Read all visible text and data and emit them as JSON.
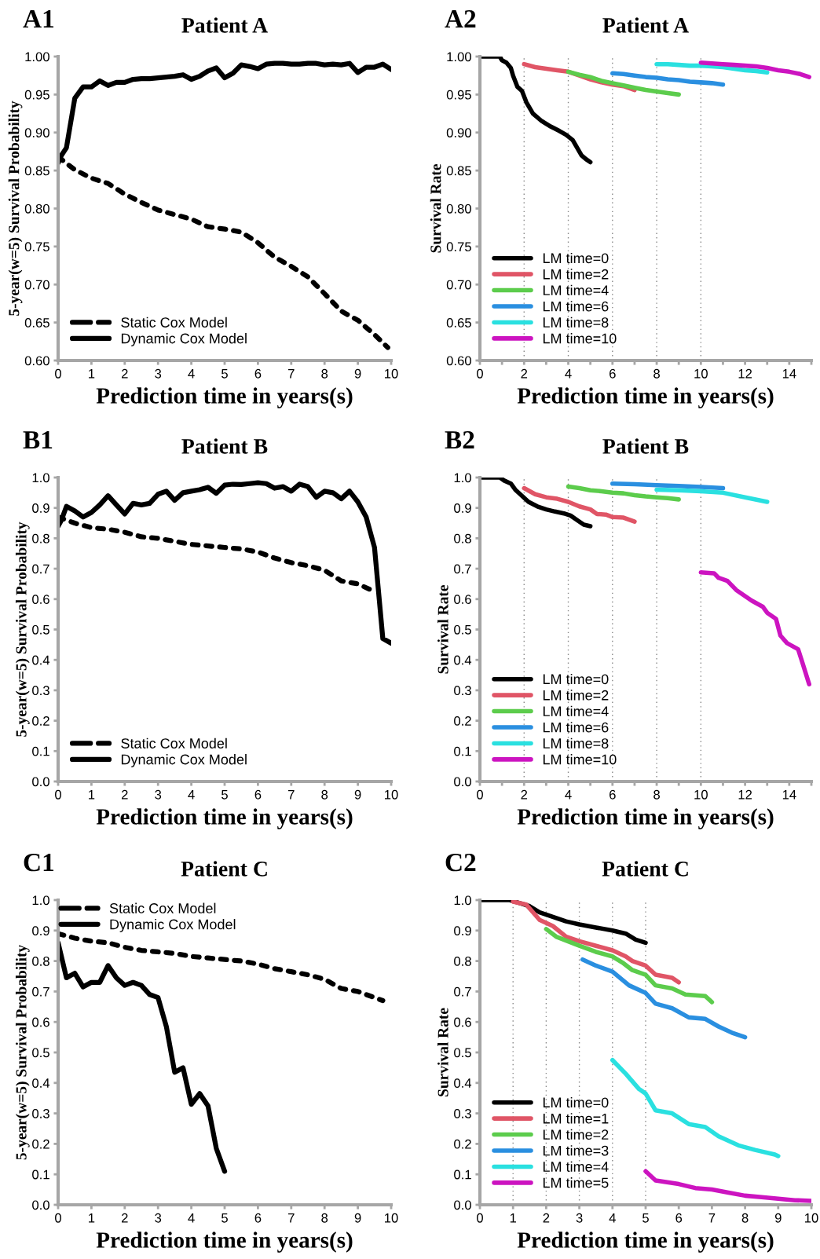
{
  "chart_data": [
    {
      "type": "line",
      "title": "Patient A",
      "annotations": [
        "A1"
      ],
      "xlabel": "Prediction time in years(s)",
      "ylabel": "5-year(w=5) Survival Probability",
      "legend": "bottom left",
      "xlim": [
        0,
        10
      ],
      "xticks": [
        0,
        1,
        2,
        3,
        4,
        5,
        6,
        7,
        8,
        9,
        10
      ],
      "ylim": [
        0.6,
        1.0
      ],
      "yticks": [
        {
          "value": 0.6,
          "label": "0.60"
        },
        {
          "value": 0.65,
          "label": "0.65"
        },
        {
          "value": 0.7,
          "label": "0.70"
        },
        {
          "value": 0.75,
          "label": "0.75"
        },
        {
          "value": 0.8,
          "label": "0.80"
        },
        {
          "value": 0.85,
          "label": "0.85"
        },
        {
          "value": 0.9,
          "label": "0.90"
        },
        {
          "value": 0.95,
          "label": "0.95"
        },
        {
          "value": 1.0,
          "label": "1.00"
        }
      ],
      "series": [
        {
          "name": "Static Cox Model",
          "color": "#000000",
          "line_style": "dashed",
          "x": [
            0,
            0.5,
            1,
            1.5,
            2,
            2.5,
            3,
            3.5,
            4,
            4.5,
            5,
            5.5,
            6,
            6.5,
            7,
            7.5,
            8,
            8.5,
            9,
            9.5,
            9.9
          ],
          "values": [
            0.868,
            0.851,
            0.84,
            0.833,
            0.819,
            0.808,
            0.798,
            0.792,
            0.786,
            0.776,
            0.773,
            0.769,
            0.755,
            0.736,
            0.724,
            0.71,
            0.688,
            0.665,
            0.653,
            0.634,
            0.617
          ]
        },
        {
          "name": "Dynamic Cox Model",
          "color": "#000000",
          "line_style": "solid",
          "x": [
            0,
            0.1,
            0.25,
            0.5,
            0.75,
            1,
            1.25,
            1.5,
            1.75,
            2,
            2.25,
            2.5,
            2.75,
            3,
            3.25,
            3.5,
            3.75,
            4,
            4.25,
            4.5,
            4.75,
            5,
            5.25,
            5.5,
            5.75,
            6,
            6.25,
            6.5,
            6.75,
            7,
            7.25,
            7.5,
            7.75,
            8,
            8.25,
            8.5,
            8.75,
            9,
            9.25,
            9.5,
            9.75,
            10
          ],
          "values": [
            0.86,
            0.87,
            0.88,
            0.945,
            0.96,
            0.96,
            0.968,
            0.962,
            0.966,
            0.966,
            0.97,
            0.971,
            0.971,
            0.972,
            0.973,
            0.974,
            0.976,
            0.97,
            0.974,
            0.981,
            0.985,
            0.972,
            0.978,
            0.989,
            0.987,
            0.984,
            0.99,
            0.991,
            0.991,
            0.99,
            0.99,
            0.991,
            0.991,
            0.989,
            0.99,
            0.989,
            0.991,
            0.979,
            0.986,
            0.986,
            0.99,
            0.983
          ]
        }
      ]
    },
    {
      "type": "line",
      "title": "Patient A",
      "annotations": [
        "A2"
      ],
      "xlabel": "Prediction time in years(s)",
      "ylabel": "Survival Rate",
      "legend": "bottom left",
      "xlim": [
        0,
        15
      ],
      "xticks": [
        0,
        {
          "value": 1,
          "label": null
        },
        2,
        {
          "value": 3,
          "label": null
        },
        4,
        {
          "value": 5,
          "label": null
        },
        6,
        {
          "value": 7,
          "label": null
        },
        8,
        {
          "value": 9,
          "label": null
        },
        10,
        {
          "value": 11,
          "label": null
        },
        12,
        {
          "value": 13,
          "label": null
        },
        14,
        {
          "value": 15,
          "label": null
        }
      ],
      "ylim": [
        0.6,
        1.0
      ],
      "yticks": [
        {
          "value": 0.6,
          "label": "0.60"
        },
        {
          "value": 0.65,
          "label": "0.65"
        },
        {
          "value": 0.7,
          "label": "0.70"
        },
        {
          "value": 0.75,
          "label": "0.75"
        },
        {
          "value": 0.8,
          "label": "0.80"
        },
        {
          "value": 0.85,
          "label": "0.85"
        },
        {
          "value": 0.9,
          "label": "0.90"
        },
        {
          "value": 0.95,
          "label": "0.95"
        },
        {
          "value": 1.0,
          "label": "1.00"
        }
      ],
      "ref_lines": [
        {
          "axis": "x",
          "value": 2,
          "color": "#888888",
          "line_style": "dotted"
        },
        {
          "axis": "x",
          "value": 4,
          "color": "#888888",
          "line_style": "dotted"
        },
        {
          "axis": "x",
          "value": 6,
          "color": "#888888",
          "line_style": "dotted"
        },
        {
          "axis": "x",
          "value": 8,
          "color": "#888888",
          "line_style": "dotted"
        },
        {
          "axis": "x",
          "value": 10,
          "color": "#888888",
          "line_style": "dotted"
        }
      ],
      "series": [
        {
          "name": "LM time=0",
          "color": "#000000",
          "x": [
            0,
            0.9,
            1.0,
            1.2,
            1.4,
            1.5,
            1.7,
            1.9,
            2.1,
            2.4,
            2.8,
            3.2,
            3.6,
            3.9,
            4.2,
            4.4,
            4.6,
            4.8,
            5.0
          ],
          "values": [
            1.0,
            1.0,
            0.995,
            0.992,
            0.985,
            0.975,
            0.96,
            0.955,
            0.94,
            0.925,
            0.915,
            0.908,
            0.902,
            0.897,
            0.89,
            0.88,
            0.87,
            0.865,
            0.861
          ]
        },
        {
          "name": "LM time=2",
          "color": "#e05566",
          "x": [
            2,
            2.5,
            3,
            3.5,
            4,
            4.5,
            5,
            5.5,
            6,
            6.5,
            7
          ],
          "values": [
            0.99,
            0.986,
            0.984,
            0.982,
            0.98,
            0.975,
            0.97,
            0.966,
            0.963,
            0.961,
            0.956
          ]
        },
        {
          "name": "LM time=4",
          "color": "#5ccc4c",
          "x": [
            4,
            4.5,
            5,
            5.5,
            6,
            6.5,
            7,
            7.5,
            8,
            8.5,
            9
          ],
          "values": [
            0.98,
            0.976,
            0.973,
            0.968,
            0.965,
            0.962,
            0.959,
            0.956,
            0.954,
            0.952,
            0.95
          ]
        },
        {
          "name": "LM time=6",
          "color": "#2a8fe0",
          "x": [
            6,
            6.5,
            7,
            7.5,
            8,
            8.5,
            9,
            9.5,
            10,
            10.5,
            11
          ],
          "values": [
            0.978,
            0.977,
            0.975,
            0.973,
            0.972,
            0.97,
            0.969,
            0.967,
            0.966,
            0.965,
            0.963
          ]
        },
        {
          "name": "LM time=8",
          "color": "#2ae0e0",
          "x": [
            8,
            8.5,
            9,
            9.5,
            10,
            10.5,
            11,
            11.5,
            12,
            12.5,
            13
          ],
          "values": [
            0.99,
            0.99,
            0.989,
            0.988,
            0.988,
            0.987,
            0.986,
            0.984,
            0.982,
            0.981,
            0.979
          ]
        },
        {
          "name": "LM time=10",
          "color": "#cc14c0",
          "x": [
            10,
            10.5,
            11,
            11.5,
            12,
            12.5,
            13,
            13.5,
            14,
            14.5,
            14.9
          ],
          "values": [
            0.992,
            0.991,
            0.99,
            0.989,
            0.988,
            0.987,
            0.985,
            0.982,
            0.98,
            0.977,
            0.973
          ]
        }
      ]
    },
    {
      "type": "line",
      "title": "Patient B",
      "annotations": [
        "B1"
      ],
      "xlabel": "Prediction time in years(s)",
      "ylabel": "5-year(w=5) Survival Probability",
      "legend": "bottom left",
      "xlim": [
        0,
        10
      ],
      "xticks": [
        0,
        1,
        2,
        3,
        4,
        5,
        6,
        7,
        8,
        9,
        10
      ],
      "ylim": [
        0.0,
        1.0
      ],
      "yticks": [
        {
          "value": 0,
          "label": "0.0"
        },
        0.1,
        0.2,
        0.3,
        0.4,
        0.5,
        0.6,
        0.7,
        0.8,
        0.9,
        {
          "value": 1,
          "label": "1.0"
        }
      ],
      "series": [
        {
          "name": "Static Cox Model",
          "color": "#000000",
          "line_style": "dashed",
          "x": [
            0,
            0.5,
            1,
            1.5,
            2,
            2.5,
            3,
            3.5,
            4,
            4.5,
            5,
            5.5,
            6,
            6.5,
            7,
            7.5,
            8,
            8.5,
            9,
            9.5
          ],
          "values": [
            0.87,
            0.85,
            0.835,
            0.83,
            0.82,
            0.805,
            0.8,
            0.79,
            0.78,
            0.775,
            0.77,
            0.765,
            0.755,
            0.735,
            0.72,
            0.71,
            0.695,
            0.66,
            0.65,
            0.625
          ]
        },
        {
          "name": "Dynamic Cox Model",
          "color": "#000000",
          "line_style": "solid",
          "x": [
            0,
            0.1,
            0.25,
            0.5,
            0.75,
            1,
            1.25,
            1.5,
            1.75,
            2,
            2.25,
            2.5,
            2.75,
            3,
            3.25,
            3.5,
            3.75,
            4,
            4.25,
            4.5,
            4.75,
            5,
            5.25,
            5.5,
            5.75,
            6,
            6.25,
            6.5,
            6.75,
            7,
            7.25,
            7.5,
            7.75,
            8,
            8.25,
            8.5,
            8.75,
            9,
            9.25,
            9.5,
            9.75,
            10
          ],
          "values": [
            0.84,
            0.86,
            0.905,
            0.89,
            0.87,
            0.885,
            0.91,
            0.94,
            0.91,
            0.88,
            0.915,
            0.91,
            0.915,
            0.945,
            0.955,
            0.925,
            0.95,
            0.955,
            0.96,
            0.968,
            0.948,
            0.975,
            0.978,
            0.977,
            0.98,
            0.983,
            0.98,
            0.965,
            0.97,
            0.955,
            0.978,
            0.97,
            0.935,
            0.955,
            0.95,
            0.93,
            0.955,
            0.92,
            0.87,
            0.77,
            0.47,
            0.455
          ]
        }
      ]
    },
    {
      "type": "line",
      "title": "Patient B",
      "annotations": [
        "B2"
      ],
      "xlabel": "Prediction time in years(s)",
      "ylabel": "Survival Rate",
      "legend": "bottom left",
      "xlim": [
        0,
        15
      ],
      "xticks": [
        0,
        {
          "value": 1,
          "label": null
        },
        2,
        {
          "value": 3,
          "label": null
        },
        4,
        {
          "value": 5,
          "label": null
        },
        6,
        {
          "value": 7,
          "label": null
        },
        8,
        {
          "value": 9,
          "label": null
        },
        10,
        {
          "value": 11,
          "label": null
        },
        12,
        {
          "value": 13,
          "label": null
        },
        14,
        {
          "value": 15,
          "label": null
        }
      ],
      "ylim": [
        0.0,
        1.0
      ],
      "yticks": [
        {
          "value": 0,
          "label": "0.0"
        },
        0.1,
        0.2,
        0.3,
        0.4,
        0.5,
        0.6,
        0.7,
        0.8,
        0.9,
        {
          "value": 1,
          "label": "1.0"
        }
      ],
      "ref_lines": [
        {
          "axis": "x",
          "value": 2,
          "color": "#888888",
          "line_style": "dotted"
        },
        {
          "axis": "x",
          "value": 4,
          "color": "#888888",
          "line_style": "dotted"
        },
        {
          "axis": "x",
          "value": 6,
          "color": "#888888",
          "line_style": "dotted"
        },
        {
          "axis": "x",
          "value": 8,
          "color": "#888888",
          "line_style": "dotted"
        },
        {
          "axis": "x",
          "value": 10,
          "color": "#888888",
          "line_style": "dotted"
        }
      ],
      "series": [
        {
          "name": "LM time=0",
          "color": "#000000",
          "x": [
            0,
            0.9,
            1.1,
            1.4,
            1.6,
            1.9,
            2.2,
            2.6,
            3,
            3.4,
            3.8,
            4.1,
            4.4,
            4.7,
            5
          ],
          "values": [
            1.0,
            1.0,
            0.99,
            0.98,
            0.96,
            0.94,
            0.92,
            0.905,
            0.895,
            0.888,
            0.882,
            0.875,
            0.86,
            0.845,
            0.84
          ]
        },
        {
          "name": "LM time=2",
          "color": "#e05566",
          "x": [
            2,
            2.5,
            3,
            3.5,
            4,
            4.5,
            5,
            5.3,
            5.7,
            6,
            6.5,
            7
          ],
          "values": [
            0.965,
            0.945,
            0.935,
            0.93,
            0.92,
            0.905,
            0.895,
            0.88,
            0.878,
            0.87,
            0.868,
            0.855
          ]
        },
        {
          "name": "LM time=4",
          "color": "#5ccc4c",
          "x": [
            4,
            4.5,
            5,
            5.5,
            6,
            6.5,
            7,
            7.5,
            8,
            8.5,
            9
          ],
          "values": [
            0.97,
            0.965,
            0.958,
            0.955,
            0.95,
            0.948,
            0.942,
            0.938,
            0.935,
            0.932,
            0.928
          ]
        },
        {
          "name": "LM time=6",
          "color": "#2a8fe0",
          "x": [
            6,
            7,
            8,
            9,
            10,
            11
          ],
          "values": [
            0.98,
            0.978,
            0.975,
            0.972,
            0.969,
            0.965
          ]
        },
        {
          "name": "LM time=8",
          "color": "#2ae0e0",
          "x": [
            8,
            9,
            10,
            11,
            12,
            13
          ],
          "values": [
            0.96,
            0.958,
            0.955,
            0.95,
            0.935,
            0.92
          ]
        },
        {
          "name": "LM time=10",
          "color": "#cc14c0",
          "x": [
            10,
            10.6,
            10.8,
            11.2,
            11.6,
            12,
            12.3,
            12.8,
            13,
            13.4,
            13.6,
            13.9,
            14.4,
            14.6,
            14.9
          ],
          "values": [
            0.688,
            0.685,
            0.67,
            0.66,
            0.63,
            0.61,
            0.595,
            0.575,
            0.555,
            0.535,
            0.48,
            0.455,
            0.435,
            0.39,
            0.32
          ]
        }
      ]
    },
    {
      "type": "line",
      "title": "Patient C",
      "annotations": [
        "C1"
      ],
      "xlabel": "Prediction time in years(s)",
      "ylabel": "5-year(w=5) Survival Probability",
      "legend": "top left",
      "xlim": [
        0,
        10
      ],
      "xticks": [
        0,
        1,
        2,
        3,
        4,
        5,
        6,
        7,
        8,
        9,
        10
      ],
      "ylim": [
        0.0,
        1.0
      ],
      "yticks": [
        {
          "value": 0,
          "label": "0.0"
        },
        0.1,
        0.2,
        0.3,
        0.4,
        0.5,
        0.6,
        0.7,
        0.8,
        0.9,
        {
          "value": 1,
          "label": "1.0"
        }
      ],
      "series": [
        {
          "name": "Static Cox Model",
          "color": "#000000",
          "line_style": "dashed",
          "x": [
            0,
            0.5,
            1,
            1.5,
            2,
            2.5,
            3,
            3.5,
            4,
            4.5,
            5,
            5.5,
            6,
            6.5,
            7,
            7.5,
            8,
            8.5,
            9,
            9.5,
            9.75
          ],
          "values": [
            0.89,
            0.875,
            0.865,
            0.86,
            0.845,
            0.835,
            0.83,
            0.825,
            0.815,
            0.81,
            0.805,
            0.8,
            0.79,
            0.775,
            0.765,
            0.755,
            0.74,
            0.71,
            0.7,
            0.68,
            0.67
          ]
        },
        {
          "name": "Dynamic Cox Model",
          "color": "#000000",
          "line_style": "solid",
          "x": [
            0,
            0.25,
            0.5,
            0.75,
            1,
            1.25,
            1.5,
            1.75,
            2,
            2.25,
            2.5,
            2.75,
            3,
            3.25,
            3.5,
            3.75,
            4,
            4.25,
            4.5,
            4.75,
            5
          ],
          "values": [
            0.86,
            0.745,
            0.76,
            0.715,
            0.73,
            0.73,
            0.785,
            0.745,
            0.72,
            0.73,
            0.72,
            0.69,
            0.68,
            0.585,
            0.435,
            0.45,
            0.33,
            0.365,
            0.325,
            0.185,
            0.11
          ]
        }
      ]
    },
    {
      "type": "line",
      "title": "Patient C",
      "annotations": [
        "C2"
      ],
      "xlabel": "Prediction time in years(s)",
      "ylabel": "Survival Rate",
      "legend": "bottom left",
      "xlim": [
        0,
        10
      ],
      "xticks": [
        0,
        1,
        2,
        3,
        4,
        5,
        6,
        7,
        8,
        9,
        10
      ],
      "ylim": [
        0.0,
        1.0
      ],
      "yticks": [
        {
          "value": 0,
          "label": "0.0"
        },
        0.1,
        0.2,
        0.3,
        0.4,
        0.5,
        0.6,
        0.7,
        0.8,
        0.9,
        {
          "value": 1,
          "label": "1.0"
        }
      ],
      "ref_lines": [
        {
          "axis": "x",
          "value": 1,
          "color": "#888888",
          "line_style": "dotted"
        },
        {
          "axis": "x",
          "value": 2,
          "color": "#888888",
          "line_style": "dotted"
        },
        {
          "axis": "x",
          "value": 3,
          "color": "#888888",
          "line_style": "dotted"
        },
        {
          "axis": "x",
          "value": 4,
          "color": "#888888",
          "line_style": "dotted"
        },
        {
          "axis": "x",
          "value": 5,
          "color": "#888888",
          "line_style": "dotted"
        }
      ],
      "series": [
        {
          "name": "LM time=0",
          "color": "#000000",
          "x": [
            0,
            0.9,
            1.2,
            1.5,
            1.8,
            2.2,
            2.6,
            3,
            3.5,
            4,
            4.4,
            4.7,
            5
          ],
          "values": [
            1.0,
            1.0,
            0.99,
            0.98,
            0.96,
            0.945,
            0.93,
            0.92,
            0.91,
            0.9,
            0.89,
            0.87,
            0.86
          ]
        },
        {
          "name": "LM time=1",
          "color": "#e05566",
          "x": [
            1,
            1.4,
            1.6,
            1.8,
            2.2,
            2.6,
            3,
            3.5,
            4,
            4.4,
            4.6,
            5,
            5.3,
            5.8,
            6
          ],
          "values": [
            0.995,
            0.985,
            0.96,
            0.935,
            0.915,
            0.88,
            0.865,
            0.85,
            0.835,
            0.815,
            0.8,
            0.785,
            0.755,
            0.745,
            0.73
          ]
        },
        {
          "name": "LM time=2",
          "color": "#5ccc4c",
          "x": [
            2,
            2.3,
            3,
            3.5,
            4,
            4.3,
            4.6,
            5,
            5.3,
            5.8,
            6.2,
            6.8,
            7
          ],
          "values": [
            0.905,
            0.88,
            0.85,
            0.83,
            0.815,
            0.795,
            0.77,
            0.755,
            0.72,
            0.71,
            0.69,
            0.685,
            0.665
          ]
        },
        {
          "name": "LM time=3",
          "color": "#2a8fe0",
          "x": [
            3.1,
            3.5,
            4,
            4.5,
            5,
            5.3,
            5.8,
            6.3,
            6.8,
            7.2,
            7.6,
            8
          ],
          "values": [
            0.805,
            0.785,
            0.765,
            0.72,
            0.695,
            0.66,
            0.645,
            0.615,
            0.61,
            0.585,
            0.565,
            0.55
          ]
        },
        {
          "name": "LM time=4",
          "color": "#2ae0e0",
          "x": [
            4,
            4.4,
            4.8,
            5,
            5.3,
            5.8,
            6.3,
            6.8,
            7.2,
            7.8,
            8.3,
            8.9,
            9
          ],
          "values": [
            0.475,
            0.43,
            0.38,
            0.365,
            0.31,
            0.3,
            0.265,
            0.255,
            0.225,
            0.195,
            0.18,
            0.165,
            0.16
          ]
        },
        {
          "name": "LM time=5",
          "color": "#cc14c0",
          "x": [
            5,
            5.3,
            6,
            6.5,
            7,
            7.5,
            8,
            8.5,
            9,
            9.5,
            10
          ],
          "values": [
            0.11,
            0.08,
            0.068,
            0.055,
            0.05,
            0.04,
            0.03,
            0.025,
            0.02,
            0.015,
            0.013
          ]
        }
      ]
    }
  ]
}
